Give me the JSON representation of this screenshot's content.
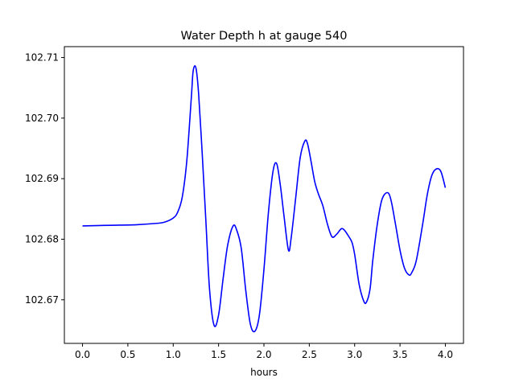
{
  "chart_data": {
    "type": "line",
    "title": "Water Depth h at gauge 540",
    "xlabel": "hours",
    "ylabel": "",
    "xlim": [
      -0.2,
      4.2
    ],
    "ylim": [
      102.6628,
      102.7118
    ],
    "grid": false,
    "x_ticks": [
      0.0,
      0.5,
      1.0,
      1.5,
      2.0,
      2.5,
      3.0,
      3.5,
      4.0
    ],
    "x_tick_labels": [
      "0.0",
      "0.5",
      "1.0",
      "1.5",
      "2.0",
      "2.5",
      "3.0",
      "3.5",
      "4.0"
    ],
    "y_ticks": [
      102.67,
      102.68,
      102.69,
      102.7,
      102.71
    ],
    "y_tick_labels": [
      "102.67",
      "102.68",
      "102.69",
      "102.70",
      "102.71"
    ],
    "series": [
      {
        "color": "#0000ff",
        "x": [
          0.0,
          0.3,
          0.6,
          0.8,
          0.9,
          1.0,
          1.05,
          1.1,
          1.15,
          1.2,
          1.22,
          1.25,
          1.28,
          1.32,
          1.36,
          1.4,
          1.45,
          1.5,
          1.55,
          1.6,
          1.66,
          1.7,
          1.75,
          1.8,
          1.85,
          1.9,
          1.95,
          2.0,
          2.05,
          2.1,
          2.14,
          2.18,
          2.22,
          2.27,
          2.3,
          2.35,
          2.4,
          2.45,
          2.48,
          2.52,
          2.56,
          2.6,
          2.65,
          2.7,
          2.75,
          2.8,
          2.85,
          2.88,
          2.92,
          2.97,
          3.0,
          3.05,
          3.1,
          3.13,
          3.17,
          3.2,
          3.25,
          3.3,
          3.36,
          3.4,
          3.45,
          3.5,
          3.55,
          3.6,
          3.63,
          3.68,
          3.75,
          3.8,
          3.85,
          3.9,
          3.95,
          4.0
        ],
        "y": [
          102.6822,
          102.6823,
          102.6824,
          102.6826,
          102.6828,
          102.6835,
          102.6845,
          102.687,
          102.693,
          102.7035,
          102.7078,
          102.7083,
          102.704,
          102.694,
          102.683,
          102.6718,
          102.6658,
          102.6675,
          102.6735,
          102.679,
          102.6822,
          102.6815,
          102.6785,
          102.6715,
          102.666,
          102.6648,
          102.6675,
          102.675,
          102.6845,
          102.6912,
          102.6925,
          102.689,
          102.684,
          102.6782,
          102.6802,
          102.6868,
          102.6935,
          102.6962,
          102.6958,
          102.6928,
          102.6895,
          102.6875,
          102.6855,
          102.6825,
          102.6804,
          102.6808,
          102.6817,
          102.6816,
          102.6808,
          102.6795,
          102.6775,
          102.6725,
          102.6698,
          102.6696,
          102.6718,
          102.6765,
          102.6825,
          102.6865,
          102.6877,
          102.6865,
          102.6825,
          102.6782,
          102.6752,
          102.6741,
          102.6745,
          102.6765,
          102.6825,
          102.6873,
          102.6905,
          102.6916,
          102.6912,
          102.6885
        ]
      }
    ]
  }
}
